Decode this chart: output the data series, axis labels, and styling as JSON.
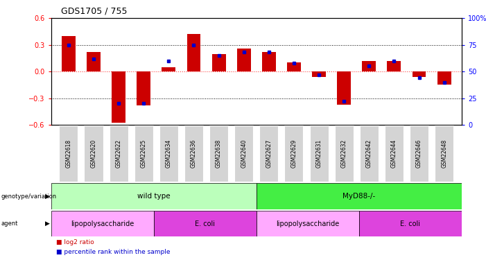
{
  "title": "GDS1705 / 755",
  "samples": [
    "GSM22618",
    "GSM22620",
    "GSM22622",
    "GSM22625",
    "GSM22634",
    "GSM22636",
    "GSM22638",
    "GSM22640",
    "GSM22627",
    "GSM22629",
    "GSM22631",
    "GSM22632",
    "GSM22642",
    "GSM22644",
    "GSM22646",
    "GSM22648"
  ],
  "log2_ratio": [
    0.4,
    0.22,
    -0.58,
    -0.38,
    0.05,
    0.42,
    0.2,
    0.26,
    0.22,
    0.1,
    -0.06,
    -0.37,
    0.12,
    0.12,
    -0.06,
    -0.15
  ],
  "percentile_rank": [
    75,
    62,
    20,
    20,
    60,
    75,
    65,
    68,
    68,
    58,
    47,
    22,
    55,
    60,
    44,
    40
  ],
  "ylim_left": [
    -0.6,
    0.6
  ],
  "ylim_right": [
    0,
    100
  ],
  "bar_color": "#cc0000",
  "marker_color": "#0000cc",
  "zero_line_color": "#ff4444",
  "grid_color": "#000000",
  "background_color": "#ffffff",
  "genotype_groups": [
    {
      "label": "wild type",
      "start": 0,
      "end": 8,
      "color": "#bbffbb"
    },
    {
      "label": "MyD88-/-",
      "start": 8,
      "end": 16,
      "color": "#44ee44"
    }
  ],
  "agent_groups": [
    {
      "label": "lipopolysaccharide",
      "start": 0,
      "end": 4,
      "color": "#ffaaff"
    },
    {
      "label": "E. coli",
      "start": 4,
      "end": 8,
      "color": "#dd44dd"
    },
    {
      "label": "lipopolysaccharide",
      "start": 8,
      "end": 12,
      "color": "#ffaaff"
    },
    {
      "label": "E. coli",
      "start": 12,
      "end": 16,
      "color": "#dd44dd"
    }
  ],
  "legend_items": [
    {
      "label": "log2 ratio",
      "color": "#cc0000"
    },
    {
      "label": "percentile rank within the sample",
      "color": "#0000cc"
    }
  ]
}
